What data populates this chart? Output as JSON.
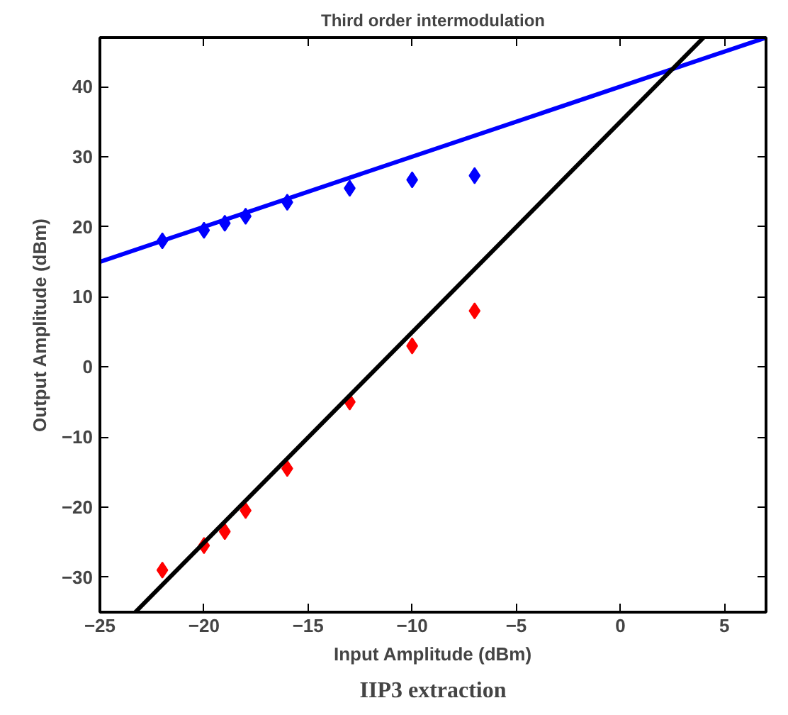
{
  "chart_data": {
    "type": "scatter",
    "title": "Third order intermodulation",
    "xlabel": "Input Amplitude (dBm)",
    "ylabel": "Output Amplitude (dBm)",
    "annotations": [
      "IIP3 extraction"
    ],
    "x": [
      -22,
      -20,
      -19,
      -18,
      -16,
      -13,
      -10,
      -7
    ],
    "series": [
      {
        "color": "#0000ff",
        "marker": "diamond",
        "values": [
          18,
          19.5,
          20.5,
          21.5,
          23.5,
          25.5,
          26.7,
          27.3
        ]
      },
      {
        "color": "#ff0000",
        "marker": "diamond",
        "values": [
          -29,
          -25.5,
          -23.5,
          -20.5,
          -14.5,
          -5,
          3,
          8
        ]
      },
      {
        "type": "line",
        "color": "#0000ff",
        "x": [
          -25,
          7
        ],
        "values": [
          15,
          47
        ]
      },
      {
        "type": "line",
        "color": "#000000",
        "x": [
          -23.3,
          4
        ],
        "values": [
          -35,
          47
        ]
      }
    ],
    "xlim": [
      -25,
      7
    ],
    "ylim": [
      -35,
      47
    ],
    "xticks": [
      -25,
      -20,
      -15,
      -10,
      -5,
      0,
      5
    ],
    "yticks": [
      -30,
      -20,
      -10,
      0,
      10,
      20,
      30,
      40
    ],
    "grid": false
  }
}
